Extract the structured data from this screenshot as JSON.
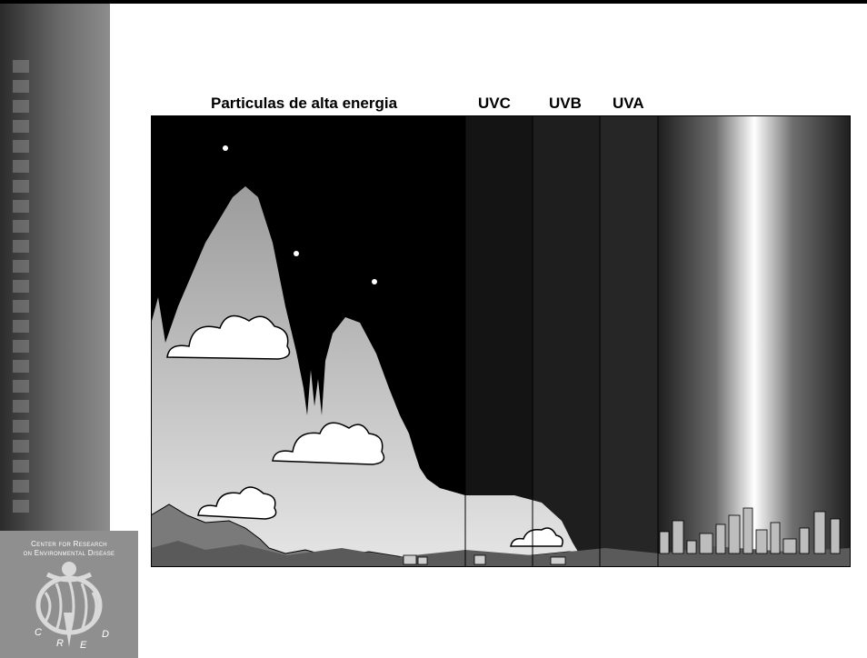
{
  "bands": {
    "particles": "Particulas de alta energia",
    "uvc": "UVC",
    "uvb": "UVB",
    "uva": "UVA"
  },
  "logo": {
    "line1": "Center for Research",
    "line2": "on Environmental Disease",
    "letters": [
      "C",
      "R",
      "E",
      "D"
    ]
  },
  "colors": {
    "sky": "#000000",
    "band_dark": "#1c1c1c",
    "sidebar": "#6a6a6a",
    "accent": "#ffffff"
  }
}
